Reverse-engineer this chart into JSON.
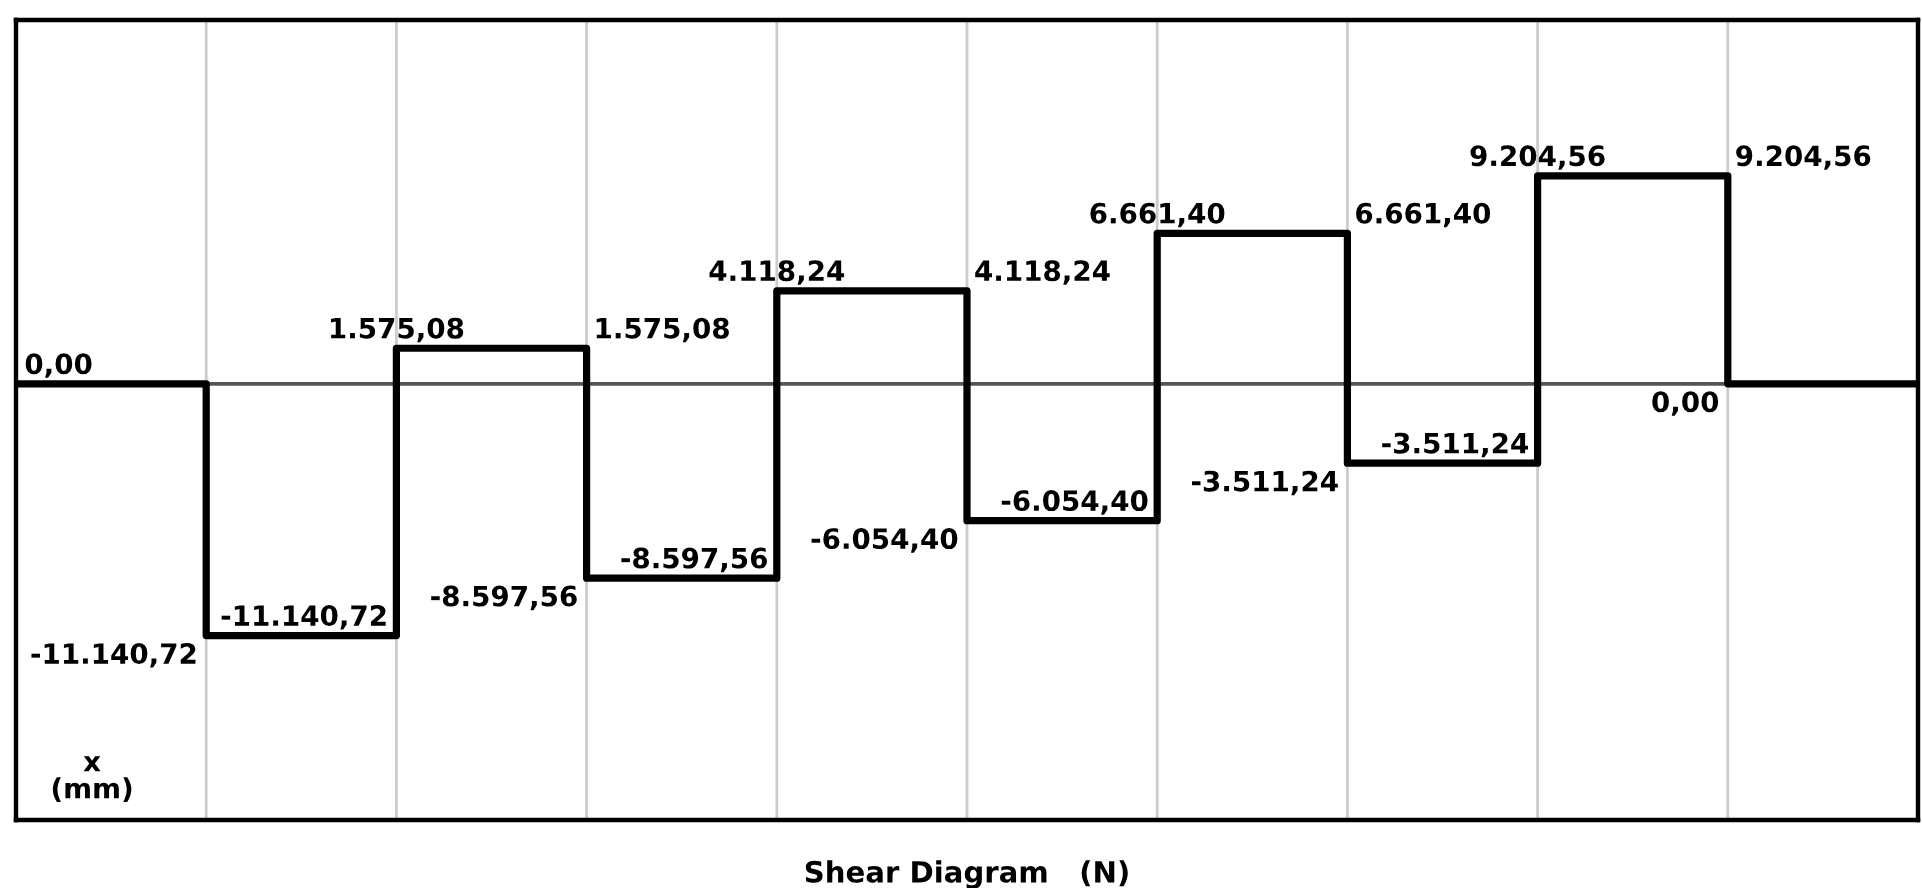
{
  "chart_data": {
    "type": "step",
    "title": "Shear Diagram   (N)",
    "xlabel": "x\n(mm)",
    "categories": [
      null,
      null,
      null,
      null,
      null,
      null,
      null,
      null,
      null,
      null,
      null
    ],
    "values": [
      0,
      -11140.72,
      1575.08,
      -8597.56,
      4118.24,
      -6054.4,
      6661.4,
      -3511.24,
      9204.56,
      0,
      0
    ],
    "value_labels": [
      "0,00",
      "-11.140,72",
      "1.575,08",
      "-8.597,56",
      "4.118,24",
      "-6.054,40",
      "6.661,40",
      "-3.511,24",
      "9.204,56",
      "0,00",
      null
    ],
    "color": "#000000",
    "ylim": [
      -19300,
      16100
    ],
    "grid": "x",
    "ref_lines": [
      {
        "axis": "y",
        "value": 0,
        "color": "#555555"
      }
    ]
  }
}
